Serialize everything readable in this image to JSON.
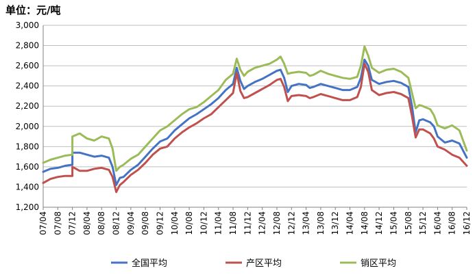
{
  "chart_data": {
    "type": "line",
    "unit_label": "单位：元/吨",
    "ylim": [
      1200,
      3000
    ],
    "yticks": [
      "1,200",
      "1,400",
      "1,600",
      "1,800",
      "2,000",
      "2,200",
      "2,400",
      "2,600",
      "2,800",
      "3,000"
    ],
    "xticks": [
      "07/04",
      "07/08",
      "07/12",
      "08/04",
      "08/08",
      "08/12",
      "09/04",
      "09/08",
      "09/12",
      "10/04",
      "10/08",
      "10/12",
      "11/04",
      "11/08",
      "11/12",
      "12/04",
      "12/08",
      "12/12",
      "13/04",
      "13/08",
      "13/12",
      "14/04",
      "14/08",
      "14/12",
      "15/04",
      "15/08",
      "15/12",
      "16/04",
      "16/08",
      "16/12"
    ],
    "grid": "horizontal",
    "legend_position": "bottom",
    "series": [
      {
        "name": "全国平均",
        "color": "#4472C4",
        "points": [
          [
            "07/04",
            1550
          ],
          [
            "07/06",
            1580
          ],
          [
            "07/08",
            1590
          ],
          [
            "07/10",
            1610
          ],
          [
            "07/12",
            1620
          ],
          [
            "07/12",
            1740
          ],
          [
            "08/02",
            1740
          ],
          [
            "08/04",
            1720
          ],
          [
            "08/06",
            1700
          ],
          [
            "08/08",
            1710
          ],
          [
            "08/10",
            1690
          ],
          [
            "08/11",
            1600
          ],
          [
            "08/12",
            1420
          ],
          [
            "09/01",
            1490
          ],
          [
            "09/02",
            1500
          ],
          [
            "09/04",
            1570
          ],
          [
            "09/06",
            1620
          ],
          [
            "09/08",
            1700
          ],
          [
            "09/10",
            1780
          ],
          [
            "09/12",
            1850
          ],
          [
            "10/02",
            1880
          ],
          [
            "10/04",
            1960
          ],
          [
            "10/06",
            2020
          ],
          [
            "10/08",
            2080
          ],
          [
            "10/10",
            2120
          ],
          [
            "10/12",
            2170
          ],
          [
            "11/02",
            2220
          ],
          [
            "11/04",
            2280
          ],
          [
            "11/06",
            2360
          ],
          [
            "11/08",
            2420
          ],
          [
            "11/09",
            2580
          ],
          [
            "11/10",
            2450
          ],
          [
            "11/11",
            2370
          ],
          [
            "11/12",
            2400
          ],
          [
            "12/02",
            2440
          ],
          [
            "12/04",
            2470
          ],
          [
            "12/06",
            2510
          ],
          [
            "12/08",
            2550
          ],
          [
            "12/09",
            2560
          ],
          [
            "12/10",
            2480
          ],
          [
            "12/11",
            2340
          ],
          [
            "12/12",
            2400
          ],
          [
            "13/02",
            2420
          ],
          [
            "13/04",
            2410
          ],
          [
            "13/05",
            2380
          ],
          [
            "13/06",
            2390
          ],
          [
            "13/08",
            2420
          ],
          [
            "13/10",
            2400
          ],
          [
            "13/12",
            2380
          ],
          [
            "14/02",
            2360
          ],
          [
            "14/04",
            2360
          ],
          [
            "14/06",
            2390
          ],
          [
            "14/07",
            2480
          ],
          [
            "14/08",
            2660
          ],
          [
            "14/09",
            2600
          ],
          [
            "14/10",
            2460
          ],
          [
            "14/12",
            2420
          ],
          [
            "15/02",
            2440
          ],
          [
            "15/04",
            2450
          ],
          [
            "15/06",
            2430
          ],
          [
            "15/08",
            2390
          ],
          [
            "15/09",
            2200
          ],
          [
            "15/10",
            1940
          ],
          [
            "15/11",
            2060
          ],
          [
            "15/12",
            2070
          ],
          [
            "16/02",
            2040
          ],
          [
            "16/03",
            2000
          ],
          [
            "16/04",
            1900
          ],
          [
            "16/06",
            1840
          ],
          [
            "16/08",
            1860
          ],
          [
            "16/10",
            1830
          ],
          [
            "16/12",
            1690
          ]
        ]
      },
      {
        "name": "产区平均",
        "color": "#C0504D",
        "points": [
          [
            "07/04",
            1440
          ],
          [
            "07/06",
            1480
          ],
          [
            "07/08",
            1500
          ],
          [
            "07/10",
            1510
          ],
          [
            "07/12",
            1510
          ],
          [
            "07/12",
            1600
          ],
          [
            "08/02",
            1560
          ],
          [
            "08/04",
            1560
          ],
          [
            "08/06",
            1580
          ],
          [
            "08/08",
            1590
          ],
          [
            "08/10",
            1570
          ],
          [
            "08/11",
            1500
          ],
          [
            "08/12",
            1350
          ],
          [
            "09/01",
            1420
          ],
          [
            "09/02",
            1450
          ],
          [
            "09/04",
            1520
          ],
          [
            "09/06",
            1570
          ],
          [
            "09/08",
            1640
          ],
          [
            "09/10",
            1720
          ],
          [
            "09/12",
            1780
          ],
          [
            "10/02",
            1800
          ],
          [
            "10/04",
            1880
          ],
          [
            "10/06",
            1940
          ],
          [
            "10/08",
            1990
          ],
          [
            "10/10",
            2030
          ],
          [
            "10/12",
            2080
          ],
          [
            "11/02",
            2120
          ],
          [
            "11/04",
            2190
          ],
          [
            "11/06",
            2260
          ],
          [
            "11/08",
            2330
          ],
          [
            "11/09",
            2530
          ],
          [
            "11/10",
            2350
          ],
          [
            "11/11",
            2280
          ],
          [
            "11/12",
            2290
          ],
          [
            "12/02",
            2330
          ],
          [
            "12/04",
            2370
          ],
          [
            "12/06",
            2410
          ],
          [
            "12/08",
            2460
          ],
          [
            "12/09",
            2470
          ],
          [
            "12/10",
            2390
          ],
          [
            "12/11",
            2250
          ],
          [
            "12/12",
            2300
          ],
          [
            "13/02",
            2310
          ],
          [
            "13/04",
            2300
          ],
          [
            "13/05",
            2280
          ],
          [
            "13/06",
            2290
          ],
          [
            "13/08",
            2320
          ],
          [
            "13/10",
            2300
          ],
          [
            "13/12",
            2280
          ],
          [
            "14/02",
            2260
          ],
          [
            "14/04",
            2260
          ],
          [
            "14/06",
            2290
          ],
          [
            "14/07",
            2390
          ],
          [
            "14/08",
            2620
          ],
          [
            "14/09",
            2540
          ],
          [
            "14/10",
            2360
          ],
          [
            "14/12",
            2310
          ],
          [
            "15/02",
            2330
          ],
          [
            "15/04",
            2340
          ],
          [
            "15/06",
            2320
          ],
          [
            "15/08",
            2280
          ],
          [
            "15/09",
            2100
          ],
          [
            "15/10",
            1890
          ],
          [
            "15/11",
            1970
          ],
          [
            "15/12",
            1970
          ],
          [
            "16/02",
            1930
          ],
          [
            "16/03",
            1880
          ],
          [
            "16/04",
            1800
          ],
          [
            "16/06",
            1770
          ],
          [
            "16/08",
            1720
          ],
          [
            "16/10",
            1690
          ],
          [
            "16/12",
            1610
          ]
        ]
      },
      {
        "name": "销区平均",
        "color": "#9BBB59",
        "points": [
          [
            "07/04",
            1640
          ],
          [
            "07/06",
            1670
          ],
          [
            "07/08",
            1690
          ],
          [
            "07/10",
            1710
          ],
          [
            "07/12",
            1720
          ],
          [
            "07/12",
            1900
          ],
          [
            "08/02",
            1930
          ],
          [
            "08/04",
            1880
          ],
          [
            "08/06",
            1860
          ],
          [
            "08/08",
            1900
          ],
          [
            "08/10",
            1880
          ],
          [
            "08/11",
            1780
          ],
          [
            "08/12",
            1560
          ],
          [
            "09/01",
            1600
          ],
          [
            "09/02",
            1620
          ],
          [
            "09/04",
            1680
          ],
          [
            "09/06",
            1720
          ],
          [
            "09/08",
            1800
          ],
          [
            "09/10",
            1880
          ],
          [
            "09/12",
            1960
          ],
          [
            "10/02",
            2000
          ],
          [
            "10/04",
            2060
          ],
          [
            "10/06",
            2120
          ],
          [
            "10/08",
            2170
          ],
          [
            "10/10",
            2190
          ],
          [
            "10/12",
            2240
          ],
          [
            "11/02",
            2300
          ],
          [
            "11/04",
            2360
          ],
          [
            "11/06",
            2460
          ],
          [
            "11/08",
            2520
          ],
          [
            "11/09",
            2670
          ],
          [
            "11/10",
            2560
          ],
          [
            "11/11",
            2500
          ],
          [
            "11/12",
            2540
          ],
          [
            "12/02",
            2580
          ],
          [
            "12/04",
            2600
          ],
          [
            "12/06",
            2620
          ],
          [
            "12/08",
            2660
          ],
          [
            "12/09",
            2690
          ],
          [
            "12/10",
            2620
          ],
          [
            "12/11",
            2520
          ],
          [
            "12/12",
            2530
          ],
          [
            "13/02",
            2540
          ],
          [
            "13/04",
            2530
          ],
          [
            "13/05",
            2500
          ],
          [
            "13/06",
            2510
          ],
          [
            "13/08",
            2550
          ],
          [
            "13/10",
            2520
          ],
          [
            "13/12",
            2500
          ],
          [
            "14/02",
            2480
          ],
          [
            "14/04",
            2470
          ],
          [
            "14/06",
            2490
          ],
          [
            "14/07",
            2600
          ],
          [
            "14/08",
            2790
          ],
          [
            "14/09",
            2700
          ],
          [
            "14/10",
            2580
          ],
          [
            "14/12",
            2530
          ],
          [
            "15/02",
            2560
          ],
          [
            "15/04",
            2570
          ],
          [
            "15/06",
            2540
          ],
          [
            "15/08",
            2480
          ],
          [
            "15/09",
            2330
          ],
          [
            "15/10",
            2180
          ],
          [
            "15/11",
            2210
          ],
          [
            "15/12",
            2200
          ],
          [
            "16/02",
            2170
          ],
          [
            "16/03",
            2110
          ],
          [
            "16/04",
            2010
          ],
          [
            "16/06",
            1980
          ],
          [
            "16/08",
            2010
          ],
          [
            "16/10",
            1960
          ],
          [
            "16/12",
            1760
          ]
        ]
      }
    ]
  }
}
